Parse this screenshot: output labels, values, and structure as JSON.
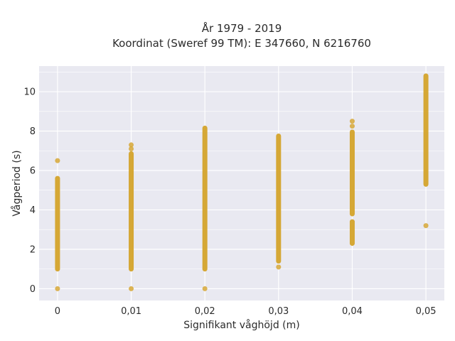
{
  "chart_data": {
    "type": "scatter",
    "title": [
      "År 1979 - 2019",
      "Koordinat (Sweref 99 TM): E 347660, N 6216760"
    ],
    "xlabel": "Signifikant våghöjd (m)",
    "ylabel": "Vågperiod (s)",
    "x_tick_labels": [
      "0",
      "0,01",
      "0,02",
      "0,03",
      "0,04",
      "0,05"
    ],
    "x_ticks": [
      0,
      0.01,
      0.02,
      0.03,
      0.04,
      0.05
    ],
    "y_tick_labels": [
      "0",
      "2",
      "4",
      "6",
      "8",
      "10"
    ],
    "y_ticks": [
      0,
      2,
      4,
      6,
      8,
      10
    ],
    "xlim": [
      -0.0025,
      0.0525
    ],
    "ylim": [
      -0.6,
      11.3
    ],
    "grid": true,
    "colors": {
      "marker": "#d4a32a",
      "plot_background": "#e9e9f1",
      "grid": "#ffffff"
    },
    "series": [
      {
        "points": [
          {
            "x": 0,
            "y_range": [
              1.0,
              5.6
            ]
          },
          {
            "x": 0,
            "y": 6.5
          },
          {
            "x": 0,
            "y": 0.0
          },
          {
            "x": 0.01,
            "y_range": [
              1.0,
              6.85
            ]
          },
          {
            "x": 0.01,
            "y": 7.1
          },
          {
            "x": 0.01,
            "y": 7.3
          },
          {
            "x": 0.01,
            "y": 0.0
          },
          {
            "x": 0.02,
            "y_range": [
              1.0,
              8.15
            ]
          },
          {
            "x": 0.02,
            "y": 0.0
          },
          {
            "x": 0.03,
            "y_range": [
              1.4,
              7.75
            ]
          },
          {
            "x": 0.03,
            "y": 1.1
          },
          {
            "x": 0.04,
            "y_range": [
              3.8,
              7.95
            ]
          },
          {
            "x": 0.04,
            "y_range": [
              2.3,
              3.4
            ]
          },
          {
            "x": 0.04,
            "y": 8.25
          },
          {
            "x": 0.04,
            "y": 8.5
          },
          {
            "x": 0.05,
            "y_range": [
              5.3,
              10.8
            ]
          },
          {
            "x": 0.05,
            "y": 3.2
          }
        ]
      }
    ]
  }
}
